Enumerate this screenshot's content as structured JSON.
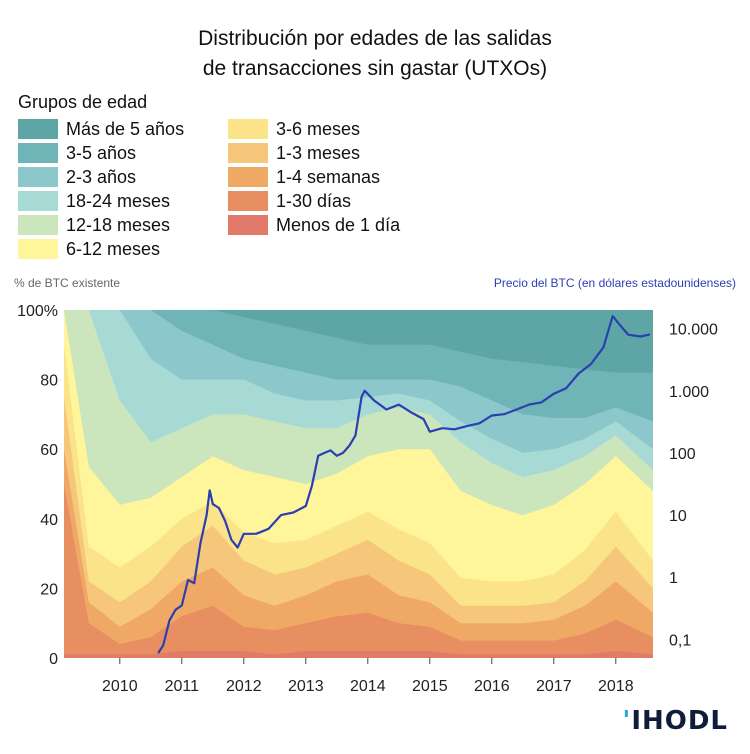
{
  "title": {
    "line1": "Distribución por edades de las salidas",
    "line2": "de transacciones sin gastar (UTXOs)"
  },
  "legend": {
    "title": "Grupos de edad",
    "items": [
      {
        "label": "Más de 5 años",
        "color": "#5ea6a5"
      },
      {
        "label": "3-5 años",
        "color": "#6fb4b7"
      },
      {
        "label": "2-3 años",
        "color": "#8cc7cb"
      },
      {
        "label": "18-24 meses",
        "color": "#a7d9d5"
      },
      {
        "label": "12-18 meses",
        "color": "#cbe6bd"
      },
      {
        "label": "6-12 meses",
        "color": "#fff59b"
      },
      {
        "label": "3-6 meses",
        "color": "#fbe38a"
      },
      {
        "label": "1-3 meses",
        "color": "#f6c77a"
      },
      {
        "label": "1-4 semanas",
        "color": "#f0a865"
      },
      {
        "label": "1-30 días",
        "color": "#e88f62"
      },
      {
        "label": "Menos de 1 día",
        "color": "#e17a68"
      }
    ]
  },
  "axis_captions": {
    "left": "% de BTC existente",
    "right": "Precio del BTC (en dólares estadounidenses)"
  },
  "logo": {
    "mark": "'",
    "text": "IHODL"
  },
  "colors": {
    "price_line": "#2b3fb0"
  },
  "chart_data": {
    "type": "area",
    "subtype": "stacked-100-percent-with-price-line",
    "title": "Distribución por edades de las salidas de transacciones sin gastar (UTXOs)",
    "xlabel": "",
    "ylabel": "% de BTC existente",
    "y2label": "Precio del BTC (en dólares estadounidenses)",
    "xlim": [
      2009.1,
      2018.6
    ],
    "ylim": [
      0,
      100
    ],
    "y2_scale": "log",
    "y2lim": [
      0.05,
      20000
    ],
    "x_ticks": [
      "2010",
      "2011",
      "2012",
      "2013",
      "2014",
      "2015",
      "2016",
      "2017",
      "2018"
    ],
    "y_ticks": [
      "0",
      "20",
      "40",
      "60",
      "80",
      "100%"
    ],
    "y2_ticks": [
      {
        "value": 0.1,
        "label": "0,1"
      },
      {
        "value": 1,
        "label": "1"
      },
      {
        "value": 10,
        "label": "10"
      },
      {
        "value": 100,
        "label": "100"
      },
      {
        "value": 1000,
        "label": "1.000"
      },
      {
        "value": 10000,
        "label": "10.000"
      }
    ],
    "x": [
      2009.1,
      2009.5,
      2010.0,
      2010.5,
      2011.0,
      2011.5,
      2012.0,
      2012.5,
      2013.0,
      2013.5,
      2014.0,
      2014.5,
      2015.0,
      2015.5,
      2016.0,
      2016.5,
      2017.0,
      2017.5,
      2018.0,
      2018.6
    ],
    "boundaries": [
      {
        "name": "Menos de 1 día",
        "values": [
          1,
          1,
          1,
          1,
          2,
          2,
          2,
          1,
          2,
          2,
          2,
          2,
          2,
          1,
          1,
          1,
          1,
          1,
          2,
          1
        ]
      },
      {
        "name": "1-30 días",
        "values": [
          50,
          10,
          4,
          6,
          12,
          15,
          9,
          8,
          10,
          12,
          13,
          10,
          9,
          5,
          5,
          5,
          5,
          7,
          11,
          6
        ]
      },
      {
        "name": "1-4 semanas",
        "values": [
          60,
          16,
          9,
          14,
          22,
          26,
          18,
          15,
          18,
          22,
          24,
          18,
          16,
          10,
          10,
          10,
          11,
          15,
          22,
          13
        ]
      },
      {
        "name": "1-3 meses",
        "values": [
          75,
          22,
          16,
          22,
          32,
          38,
          28,
          24,
          26,
          30,
          34,
          28,
          24,
          15,
          15,
          15,
          16,
          22,
          32,
          20
        ]
      },
      {
        "name": "3-6 meses",
        "values": [
          90,
          32,
          26,
          32,
          40,
          45,
          36,
          33,
          34,
          38,
          42,
          37,
          33,
          23,
          22,
          22,
          24,
          31,
          42,
          28
        ]
      },
      {
        "name": "6-12 meses",
        "values": [
          100,
          55,
          44,
          46,
          52,
          58,
          54,
          52,
          50,
          53,
          58,
          60,
          60,
          48,
          44,
          41,
          44,
          50,
          58,
          48
        ]
      },
      {
        "name": "12-18 meses",
        "values": [
          100,
          100,
          74,
          62,
          66,
          70,
          70,
          68,
          66,
          66,
          70,
          72,
          70,
          62,
          56,
          52,
          54,
          58,
          64,
          54
        ]
      },
      {
        "name": "18-24 meses",
        "values": [
          100,
          100,
          100,
          86,
          80,
          80,
          80,
          76,
          74,
          74,
          75,
          76,
          74,
          68,
          63,
          59,
          60,
          63,
          68,
          60
        ]
      },
      {
        "name": "2-3 años",
        "values": [
          100,
          100,
          100,
          100,
          94,
          90,
          86,
          84,
          82,
          80,
          80,
          80,
          80,
          78,
          74,
          70,
          69,
          69,
          72,
          68
        ]
      },
      {
        "name": "3-5 años",
        "values": [
          100,
          100,
          100,
          100,
          100,
          100,
          98,
          96,
          94,
          92,
          90,
          90,
          90,
          88,
          86,
          85,
          84,
          83,
          82,
          82
        ]
      },
      {
        "name": "Más de 5 años",
        "values": [
          100,
          100,
          100,
          100,
          100,
          100,
          100,
          100,
          100,
          100,
          100,
          100,
          100,
          100,
          100,
          100,
          100,
          100,
          100,
          100
        ]
      }
    ],
    "price_series": {
      "name": "Precio del BTC",
      "x": [
        2010.62,
        2010.7,
        2010.8,
        2010.9,
        2011.0,
        2011.1,
        2011.2,
        2011.3,
        2011.4,
        2011.45,
        2011.5,
        2011.6,
        2011.7,
        2011.8,
        2011.9,
        2012.0,
        2012.2,
        2012.4,
        2012.6,
        2012.8,
        2013.0,
        2013.1,
        2013.2,
        2013.3,
        2013.4,
        2013.5,
        2013.6,
        2013.7,
        2013.8,
        2013.9,
        2013.95,
        2014.1,
        2014.3,
        2014.5,
        2014.7,
        2014.9,
        2015.0,
        2015.2,
        2015.4,
        2015.6,
        2015.8,
        2016.0,
        2016.2,
        2016.4,
        2016.6,
        2016.8,
        2017.0,
        2017.2,
        2017.4,
        2017.6,
        2017.8,
        2017.95,
        2018.05,
        2018.2,
        2018.4,
        2018.55
      ],
      "values": [
        0.06,
        0.08,
        0.2,
        0.3,
        0.35,
        0.9,
        0.8,
        3.5,
        10,
        25,
        15,
        13,
        8,
        4,
        3,
        5,
        5,
        6,
        10,
        11,
        14,
        30,
        90,
        100,
        110,
        90,
        100,
        130,
        190,
        800,
        1000,
        700,
        500,
        600,
        450,
        350,
        220,
        250,
        240,
        270,
        300,
        400,
        420,
        500,
        600,
        650,
        900,
        1100,
        1900,
        2700,
        5000,
        16000,
        12000,
        8000,
        7500,
        8100
      ]
    }
  }
}
